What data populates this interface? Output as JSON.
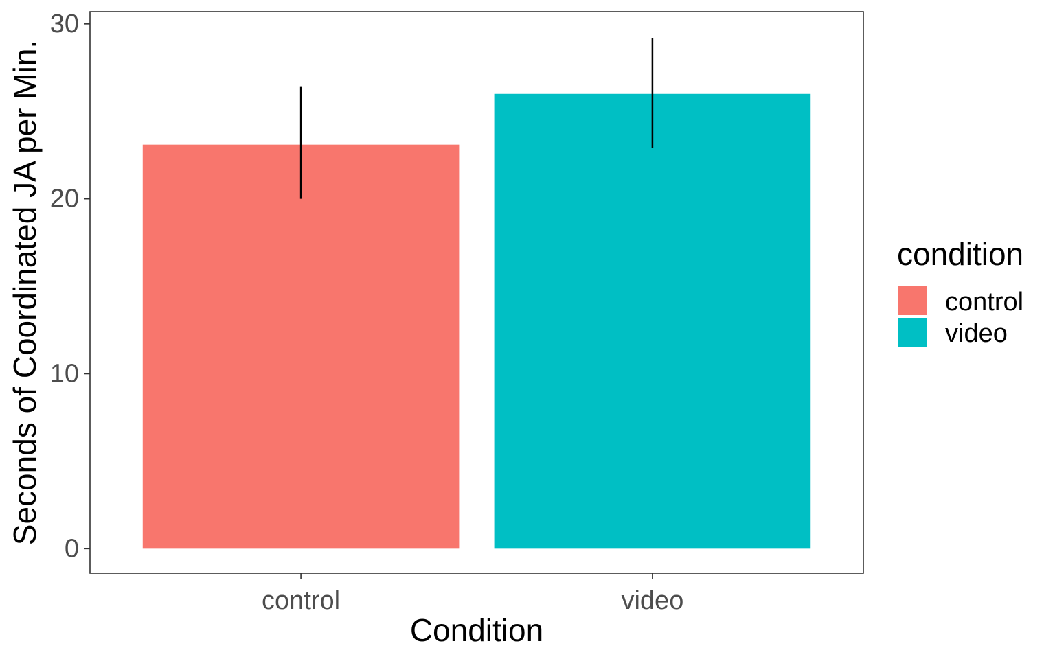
{
  "chart_data": {
    "type": "bar",
    "xlabel": "Condition",
    "ylabel": "Seconds of Coordinated JA per Min.",
    "categories": [
      "control",
      "video"
    ],
    "values": [
      23.1,
      26.0
    ],
    "error_bars": [
      {
        "low": 20.0,
        "high": 26.4
      },
      {
        "low": 22.9,
        "high": 29.2
      }
    ],
    "colors": [
      "#F8766D",
      "#00BFC4"
    ],
    "ylim": [
      -1.4,
      30.7
    ],
    "yticks": [
      0,
      10,
      20,
      30
    ],
    "grid": false,
    "legend": {
      "title": "condition",
      "placement": "right",
      "entries": [
        "control",
        "video"
      ]
    }
  }
}
